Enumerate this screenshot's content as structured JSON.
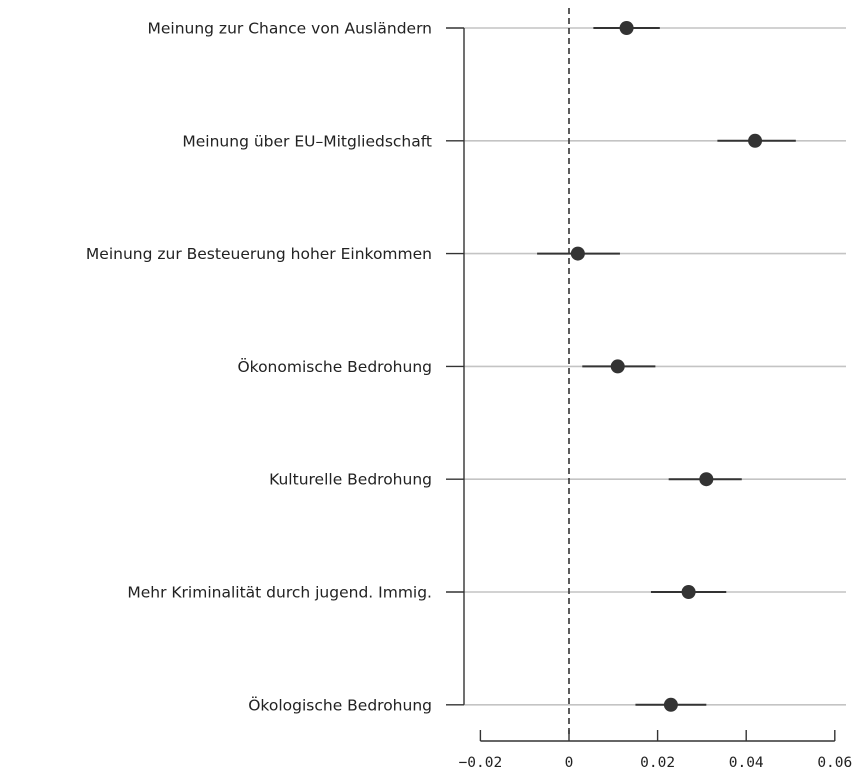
{
  "chart_data": {
    "type": "scatter",
    "title": "",
    "xlabel": "",
    "ylabel": "",
    "xlim": [
      -0.02,
      0.06
    ],
    "reference_line": 0,
    "x_ticks": [
      {
        "value": -0.02,
        "label": "−0.02"
      },
      {
        "value": 0,
        "label": "0"
      },
      {
        "value": 0.02,
        "label": "0.02"
      },
      {
        "value": 0.04,
        "label": "0.04"
      },
      {
        "value": 0.06,
        "label": "0.06"
      }
    ],
    "categories": [
      "Meinung zur Chance von Ausländern",
      "Meinung über EU–Mitgliedschaft",
      "Meinung zur Besteuerung hoher Einkommen",
      "Ökonomische Bedrohung",
      "Kulturelle Bedrohung",
      "Mehr Kriminalität durch jugend. Immig.",
      "Ökologische Bedrohung"
    ],
    "estimates": [
      0.013,
      0.042,
      0.002,
      0.011,
      0.031,
      0.027,
      0.023
    ],
    "ci_low": [
      0.0055,
      0.0335,
      -0.0072,
      0.003,
      0.0225,
      0.0185,
      0.015
    ],
    "ci_high": [
      0.0205,
      0.0512,
      0.0115,
      0.0195,
      0.039,
      0.0355,
      0.031
    ],
    "colors": {
      "point": "#333333",
      "ci": "#333333",
      "guide": "#c4c4c4",
      "axis": "#333333"
    }
  }
}
